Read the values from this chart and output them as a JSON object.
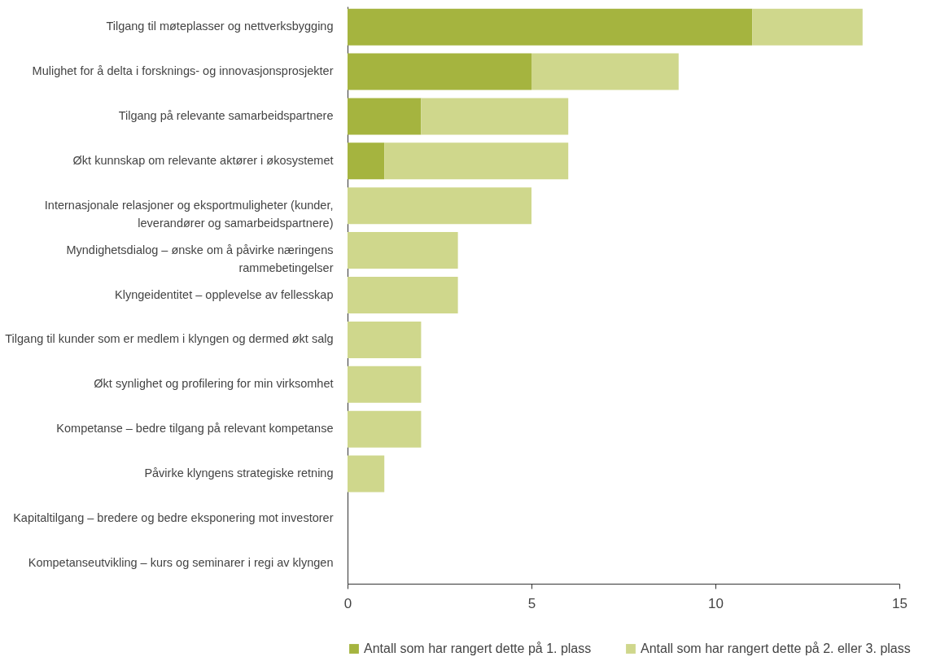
{
  "chart_data": {
    "type": "bar",
    "orientation": "horizontal",
    "stacked": true,
    "categories": [
      "Tilgang til møteplasser og nettverksbygging",
      "Mulighet for å delta i forsknings- og innovasjonsprosjekter",
      "Tilgang på relevante samarbeidspartnere",
      "Økt kunnskap om relevante aktører i økosystemet",
      "Internasjonale relasjoner og eksportmuligheter (kunder, leverandører og samarbeidspartnere)",
      "Myndighetsdialog – ønske om å påvirke næringens rammebetingelser",
      "Klyngeidentitet – opplevelse av fellesskap",
      "Tilgang til kunder som er medlem i klyngen og dermed økt salg",
      "Økt synlighet og profilering for min virksomhet",
      "Kompetanse – bedre tilgang på relevant kompetanse",
      "Påvirke klyngens strategiske retning",
      "Kapitaltilgang – bredere og bedre eksponering mot investorer",
      "Kompetanseutvikling – kurs og seminarer i regi av klyngen"
    ],
    "series": [
      {
        "name": "Antall som har rangert dette på 1. plass",
        "color": "#a5b43f",
        "values": [
          11,
          5,
          2,
          1,
          0,
          0,
          0,
          0,
          0,
          0,
          0,
          0,
          0
        ]
      },
      {
        "name": "Antall som har rangert dette på 2. eller 3. plass",
        "color": "#cfd78c",
        "values": [
          3,
          4,
          4,
          5,
          5,
          3,
          3,
          2,
          2,
          2,
          1,
          0,
          0
        ]
      }
    ],
    "xlim": [
      0,
      15
    ],
    "xticks": [
      0,
      5,
      10,
      15
    ],
    "grid": false,
    "legend": "bottom"
  }
}
